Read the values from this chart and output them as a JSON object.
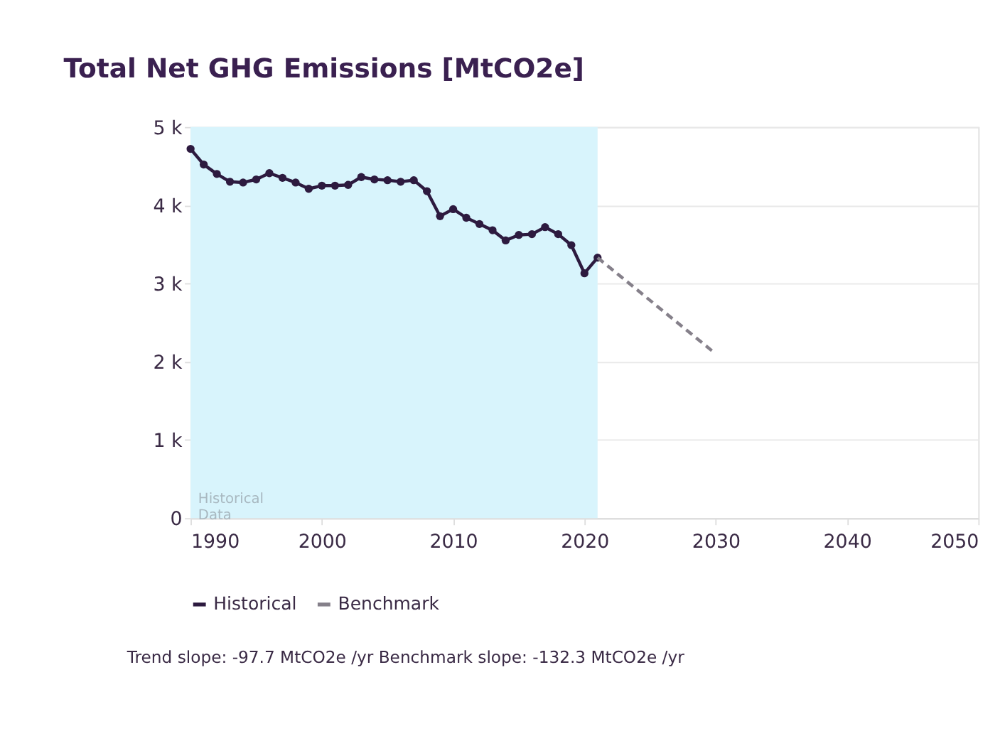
{
  "chart_data": {
    "type": "line",
    "title": "Total Net GHG Emissions [MtCO2e]",
    "xlim": [
      1990,
      2050
    ],
    "xticks": [
      1990,
      2000,
      2010,
      2020,
      2030,
      2040,
      2050
    ],
    "ylim": [
      0,
      5000
    ],
    "yticks": [
      0,
      {
        "value": 1000,
        "label": "1 k"
      },
      {
        "value": 2000,
        "label": "2 k"
      },
      {
        "value": 3000,
        "label": "3 k"
      },
      {
        "value": 4000,
        "label": "4 k"
      },
      {
        "value": 5000,
        "label": "5 k"
      }
    ],
    "grid": "y",
    "legend": "bottom",
    "series": [
      {
        "name": "Historical",
        "color": "#2d1a3f",
        "marker": "circle",
        "line_style": "solid",
        "x": [
          1990,
          1991,
          1992,
          1993,
          1994,
          1995,
          1996,
          1997,
          1998,
          1999,
          2000,
          2001,
          2002,
          2003,
          2004,
          2005,
          2006,
          2007,
          2008,
          2009,
          2010,
          2011,
          2012,
          2013,
          2014,
          2015,
          2016,
          2017,
          2018,
          2019,
          2020,
          2021
        ],
        "values": [
          4720,
          4520,
          4400,
          4300,
          4290,
          4330,
          4410,
          4350,
          4290,
          4210,
          4250,
          4250,
          4260,
          4360,
          4330,
          4320,
          4300,
          4320,
          4180,
          3860,
          3950,
          3840,
          3760,
          3680,
          3550,
          3620,
          3630,
          3720,
          3630,
          3490,
          3130,
          3330
        ]
      },
      {
        "name": "Benchmark",
        "color": "#85808a",
        "marker": "none",
        "line_style": "dashed",
        "x": [
          2021,
          2030
        ],
        "values": [
          3330,
          2100
        ]
      }
    ],
    "bands": [
      {
        "axis": "x",
        "from": 1990,
        "to": 2021,
        "label": "Historical Data",
        "color": "#d8f4fc"
      }
    ],
    "annotations": [
      "Trend slope: -97.7 MtCO2e /yr Benchmark slope: -132.3 MtCO2e /yr"
    ]
  }
}
